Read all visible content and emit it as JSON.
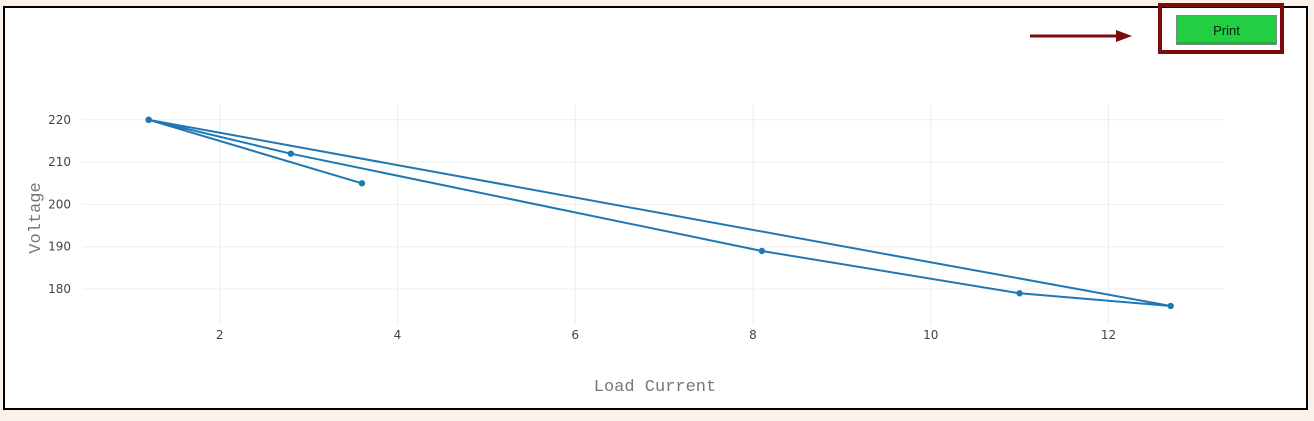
{
  "toolbar": {
    "print_label": "Print"
  },
  "colors": {
    "line": "#1f77b4",
    "button": "#22cf43",
    "highlight": "#7b0c0c",
    "arrow": "#7b0c0c",
    "page_background": "#fbf1e9"
  },
  "chart_data": {
    "type": "line",
    "xlabel": "Load Current",
    "ylabel": "Voltage",
    "xlim": [
      0.45,
      13.3
    ],
    "ylim": [
      171.5,
      223.5
    ],
    "xticks": [
      2,
      4,
      6,
      8,
      10,
      12
    ],
    "yticks": [
      180,
      190,
      200,
      210,
      220
    ],
    "grid": true,
    "series": [
      {
        "x": [
          3.6,
          1.2,
          12.7,
          11.0,
          8.1,
          2.8,
          1.2
        ],
        "y": [
          205,
          220,
          176,
          179,
          189,
          212,
          220
        ]
      }
    ]
  }
}
